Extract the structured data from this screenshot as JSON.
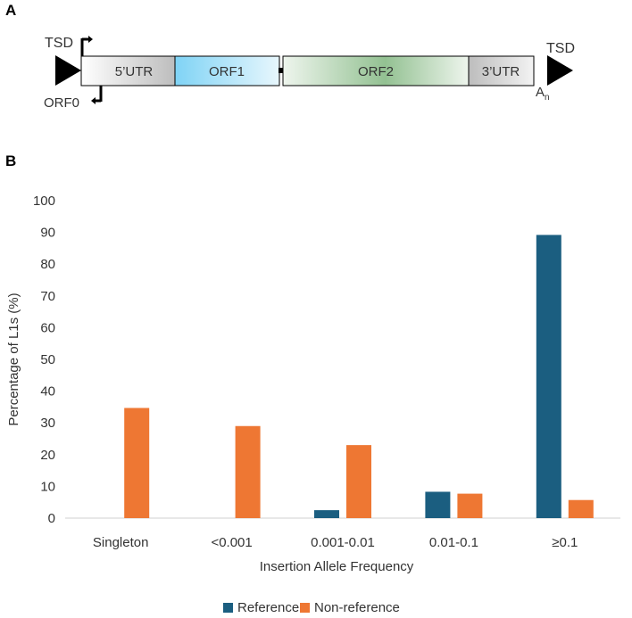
{
  "panel_a": {
    "label": "A",
    "tsd_left": "TSD",
    "tsd_right": "TSD",
    "orf0": "ORF0",
    "poly_a_base": "A",
    "poly_a_sub": "n",
    "segments": {
      "utr5": "5’UTR",
      "orf1": "ORF1",
      "orf2": "ORF2",
      "utr3": "3’UTR"
    },
    "colors": {
      "orf1": "#7fd3f5",
      "orf2": "#9dc59a",
      "utr": "#c8c8c8"
    }
  },
  "chart_data": {
    "panel_label": "B",
    "type": "bar",
    "categories": [
      "Singleton",
      "<0.001",
      "0.001-0.01",
      "0.01-0.1",
      "≥0.1"
    ],
    "series": [
      {
        "name": "Reference",
        "color": "#1b5e80",
        "values": [
          0,
          0,
          2.5,
          8.3,
          89.2
        ]
      },
      {
        "name": "Non-reference",
        "color": "#ee7733",
        "values": [
          34.7,
          29,
          23,
          7.7,
          5.7
        ]
      }
    ],
    "xlabel": "Insertion Allele Frequency",
    "ylabel": "Percentage of L1s (%)",
    "ylim": [
      0,
      100
    ],
    "yticks": [
      0,
      10,
      20,
      30,
      40,
      50,
      60,
      70,
      80,
      90,
      100
    ],
    "grid": false,
    "legend_position": "bottom-center"
  }
}
